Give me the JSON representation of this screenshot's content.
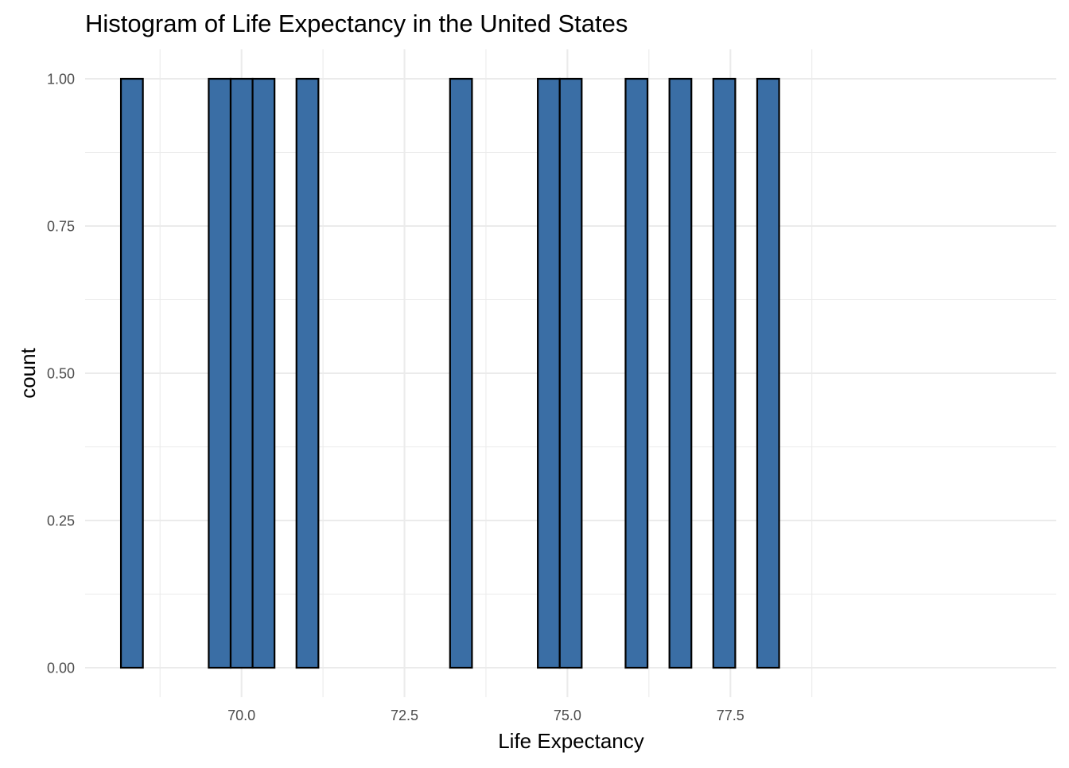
{
  "chart_data": {
    "type": "bar",
    "title": "Histogram of Life Expectancy in the United States",
    "xlabel": "Life Expectancy",
    "ylabel": "count",
    "x_ticks": [
      "70.0",
      "72.5",
      "75.0",
      "77.5"
    ],
    "x_tick_values": [
      70.0,
      72.5,
      75.0,
      77.5
    ],
    "y_ticks": [
      "0.00",
      "0.25",
      "0.50",
      "0.75",
      "1.00"
    ],
    "y_tick_values": [
      0.0,
      0.25,
      0.5,
      0.75,
      1.0
    ],
    "xlim": [
      67.6,
      82.5
    ],
    "ylim": [
      -0.05,
      1.05
    ],
    "bin_range": [
      68.15,
      78.25
    ],
    "bin_width": 0.3366,
    "bin_counts": [
      1,
      0,
      0,
      0,
      1,
      1,
      1,
      0,
      1,
      0,
      0,
      0,
      0,
      0,
      0,
      1,
      0,
      0,
      0,
      1,
      1,
      0,
      0,
      1,
      0,
      1,
      0,
      1,
      0,
      1
    ],
    "grid": true,
    "colors": {
      "bar_fill": "#3a6ea5",
      "bar_outline": "#000000",
      "grid": "#ebebeb",
      "tick_text": "#4d4d4d"
    }
  }
}
